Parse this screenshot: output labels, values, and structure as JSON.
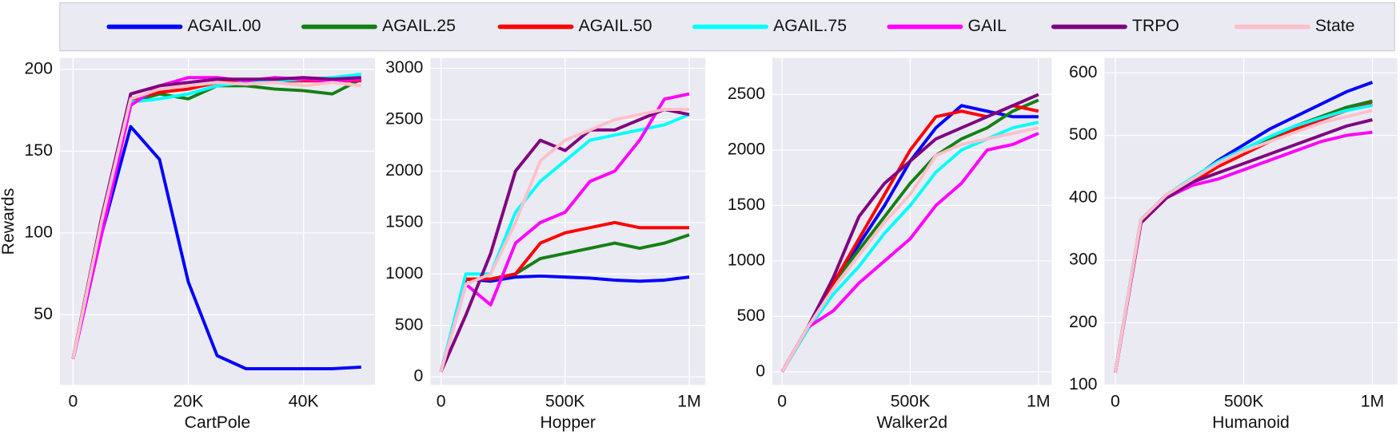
{
  "chart_data": [
    {
      "type": "line",
      "xlabel": "CartPole",
      "ylabel": "Rewards",
      "x": [
        0,
        5000,
        10000,
        15000,
        20000,
        25000,
        30000,
        35000,
        40000,
        45000,
        50000
      ],
      "xlim": [
        -2300,
        52400
      ],
      "xticks": [
        0,
        {
          "value": 20000,
          "label": "20K"
        },
        {
          "value": 40000,
          "label": "40K"
        }
      ],
      "ylim": [
        7,
        207
      ],
      "yticks": [
        50,
        100,
        150,
        200
      ],
      "grid": true,
      "series": [
        {
          "name": "AGAIL.00",
          "color": "#0000ff",
          "values": [
            23,
            100,
            165,
            145,
            70,
            25,
            17,
            17,
            17,
            17,
            18
          ]
        },
        {
          "name": "AGAIL.25",
          "color": "#148014",
          "values": [
            23,
            110,
            180,
            185,
            182,
            190,
            190,
            188,
            187,
            185,
            194
          ]
        },
        {
          "name": "AGAIL.50",
          "color": "#ff0000",
          "values": [
            23,
            110,
            182,
            186,
            188,
            192,
            193,
            193,
            193,
            193,
            193
          ]
        },
        {
          "name": "AGAIL.75",
          "color": "#00ffff",
          "values": [
            23,
            105,
            180,
            182,
            185,
            190,
            192,
            193,
            194,
            195,
            197
          ]
        },
        {
          "name": "GAIL",
          "color": "#ff00ff",
          "values": [
            23,
            100,
            178,
            190,
            195,
            195,
            193,
            195,
            194,
            193,
            194
          ]
        },
        {
          "name": "TRPO",
          "color": "#7f007f",
          "values": [
            23,
            110,
            185,
            190,
            192,
            194,
            194,
            194,
            195,
            194,
            195
          ]
        },
        {
          "name": "State",
          "color": "#ffc0cb",
          "values": [
            23,
            108,
            182,
            188,
            190,
            192,
            191,
            192,
            190,
            192,
            190
          ]
        }
      ]
    },
    {
      "type": "line",
      "xlabel": "Hopper",
      "x": [
        0,
        100000,
        200000,
        300000,
        400000,
        500000,
        600000,
        700000,
        800000,
        900000,
        1000000
      ],
      "xlim": [
        -43000,
        1065000
      ],
      "xticks": [
        0,
        {
          "value": 500000,
          "label": "500K"
        },
        {
          "value": 1000000,
          "label": "1M"
        }
      ],
      "ylim": [
        -80,
        3100
      ],
      "yticks": [
        0,
        500,
        1000,
        1500,
        2000,
        2500,
        3000
      ],
      "grid": true,
      "series": [
        {
          "values": [
            50,
            950,
            930,
            970,
            980,
            970,
            960,
            940,
            930,
            940,
            970
          ]
        },
        {
          "values": [
            50,
            950,
            950,
            1000,
            1150,
            1200,
            1250,
            1300,
            1250,
            1300,
            1380
          ]
        },
        {
          "values": [
            50,
            950,
            950,
            1000,
            1300,
            1400,
            1450,
            1500,
            1450,
            1450,
            1450
          ]
        },
        {
          "values": [
            50,
            1000,
            1000,
            1600,
            1900,
            2100,
            2300,
            2350,
            2400,
            2450,
            2550
          ]
        },
        {
          "values": [
            50,
            900,
            700,
            1300,
            1500,
            1600,
            1900,
            2000,
            2300,
            2700,
            2750
          ]
        },
        {
          "values": [
            50,
            600,
            1200,
            2000,
            2300,
            2200,
            2400,
            2400,
            2500,
            2600,
            2550
          ]
        },
        {
          "values": [
            50,
            900,
            1000,
            1500,
            2100,
            2300,
            2400,
            2500,
            2550,
            2600,
            2600
          ]
        }
      ]
    },
    {
      "type": "line",
      "xlabel": "Walker2d",
      "x": [
        0,
        100000,
        200000,
        300000,
        400000,
        500000,
        600000,
        700000,
        800000,
        900000,
        1000000
      ],
      "xlim": [
        -38000,
        1052000
      ],
      "xticks": [
        0,
        {
          "value": 500000,
          "label": "500K"
        },
        {
          "value": 1000000,
          "label": "1M"
        }
      ],
      "ylim": [
        -120,
        2830
      ],
      "yticks": [
        0,
        500,
        1000,
        1500,
        2000,
        2500
      ],
      "grid": true,
      "series": [
        {
          "values": [
            0,
            400,
            800,
            1150,
            1500,
            1900,
            2200,
            2400,
            2350,
            2300,
            2300
          ]
        },
        {
          "values": [
            0,
            400,
            800,
            1100,
            1400,
            1700,
            1950,
            2100,
            2200,
            2350,
            2450
          ]
        },
        {
          "values": [
            0,
            400,
            800,
            1200,
            1600,
            2000,
            2300,
            2350,
            2300,
            2400,
            2350
          ]
        },
        {
          "values": [
            0,
            380,
            700,
            950,
            1250,
            1500,
            1800,
            2000,
            2100,
            2200,
            2250
          ]
        },
        {
          "values": [
            0,
            400,
            550,
            800,
            1000,
            1200,
            1500,
            1700,
            2000,
            2050,
            2150
          ]
        },
        {
          "values": [
            0,
            400,
            850,
            1400,
            1700,
            1900,
            2100,
            2200,
            2300,
            2400,
            2500
          ]
        },
        {
          "values": [
            0,
            400,
            750,
            1050,
            1350,
            1600,
            1950,
            2050,
            2100,
            2150,
            2200
          ]
        }
      ]
    },
    {
      "type": "line",
      "xlabel": "Humanoid",
      "x": [
        0,
        100000,
        200000,
        300000,
        400000,
        500000,
        600000,
        700000,
        800000,
        900000,
        1000000
      ],
      "xlim": [
        -42000,
        1097000
      ],
      "xticks": [
        0,
        {
          "value": 500000,
          "label": "500K"
        },
        {
          "value": 1000000,
          "label": "1M"
        }
      ],
      "ylim": [
        100,
        624
      ],
      "yticks": [
        100,
        200,
        300,
        400,
        500,
        600
      ],
      "grid": true,
      "series": [
        {
          "values": [
            120,
            365,
            405,
            430,
            460,
            485,
            510,
            530,
            550,
            570,
            585
          ]
        },
        {
          "values": [
            120,
            365,
            405,
            430,
            455,
            475,
            495,
            515,
            530,
            545,
            555
          ]
        },
        {
          "values": [
            120,
            365,
            405,
            425,
            450,
            470,
            490,
            510,
            525,
            540,
            550
          ]
        },
        {
          "values": [
            120,
            365,
            405,
            432,
            458,
            478,
            498,
            515,
            528,
            540,
            548
          ]
        },
        {
          "values": [
            120,
            360,
            400,
            420,
            430,
            445,
            460,
            475,
            490,
            500,
            505
          ]
        },
        {
          "values": [
            120,
            360,
            400,
            425,
            440,
            455,
            470,
            485,
            500,
            515,
            525
          ]
        },
        {
          "values": [
            120,
            365,
            405,
            430,
            455,
            475,
            490,
            505,
            520,
            530,
            540
          ]
        }
      ]
    }
  ]
}
